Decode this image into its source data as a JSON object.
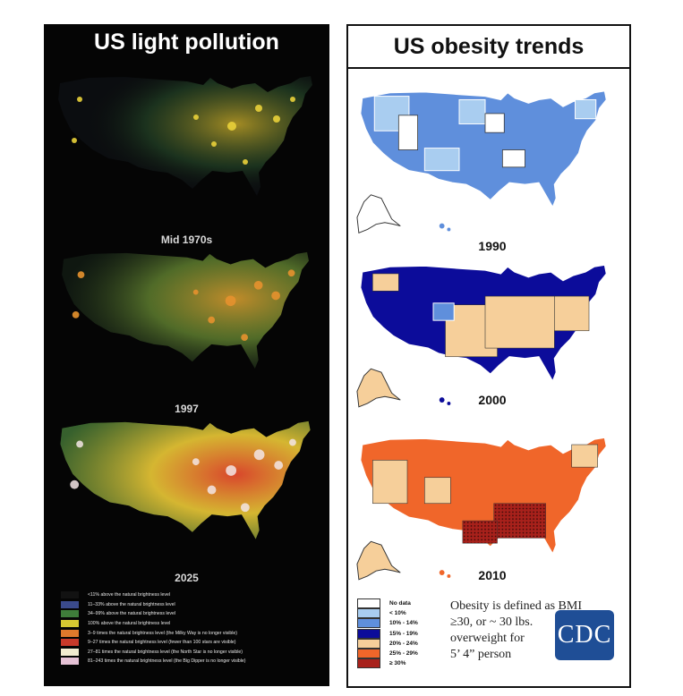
{
  "left_panel": {
    "title": "US light pollution",
    "maps": [
      {
        "label": "Mid 1970s"
      },
      {
        "label": "1997"
      },
      {
        "label": "2025"
      }
    ],
    "legend": [
      {
        "color": "#121212",
        "text": "<11% above the natural brightness level"
      },
      {
        "color": "#3a4a8c",
        "text": "11–33% above the natural brightness level"
      },
      {
        "color": "#3f7d3a",
        "text": "34–99% above the natural brightness level"
      },
      {
        "color": "#d8c832",
        "text": "100% above the natural brightness level"
      },
      {
        "color": "#e07a2c",
        "text": "3–9 times the natural brightness level (the Milky Way is no longer visible)"
      },
      {
        "color": "#c83a2a",
        "text": "9–27 times the natural brightness level (fewer than 100 stars are visible)"
      },
      {
        "color": "#f2ecd0",
        "text": "27–81 times the natural brightness level (the North Star is no longer visible)"
      },
      {
        "color": "#e6c2d6",
        "text": "81–243 times the natural brightness level (the Big Dipper is no longer visible)"
      }
    ]
  },
  "right_panel": {
    "title": "US obesity trends",
    "maps": [
      {
        "label": "1990"
      },
      {
        "label": "2000"
      },
      {
        "label": "2010"
      }
    ],
    "legend": [
      {
        "color": "#ffffff",
        "text": "No data"
      },
      {
        "color": "#a9cdf0",
        "text": "< 10%"
      },
      {
        "color": "#5f8fdc",
        "text": "10% - 14%"
      },
      {
        "color": "#0c0c9a",
        "text": "15% - 19%"
      },
      {
        "color": "#f6cf9a",
        "text": "20% - 24%"
      },
      {
        "color": "#f0662a",
        "text": "25% - 29%"
      },
      {
        "color": "#a8211b",
        "text": "≥ 30%"
      }
    ],
    "note_lines": [
      "Obesity is defined as BMI",
      "≥30, or ~ 30 lbs.",
      "overweight for",
      "5’ 4” person"
    ],
    "logo_text": "CDC"
  }
}
